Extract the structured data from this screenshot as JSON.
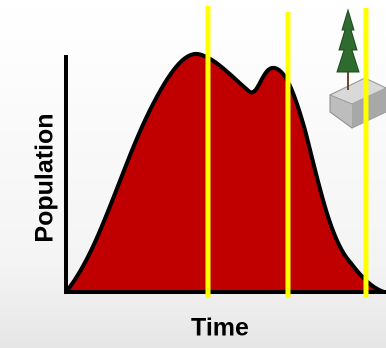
{
  "axes": {
    "y_label": "Population",
    "x_label": "Time"
  }
}
